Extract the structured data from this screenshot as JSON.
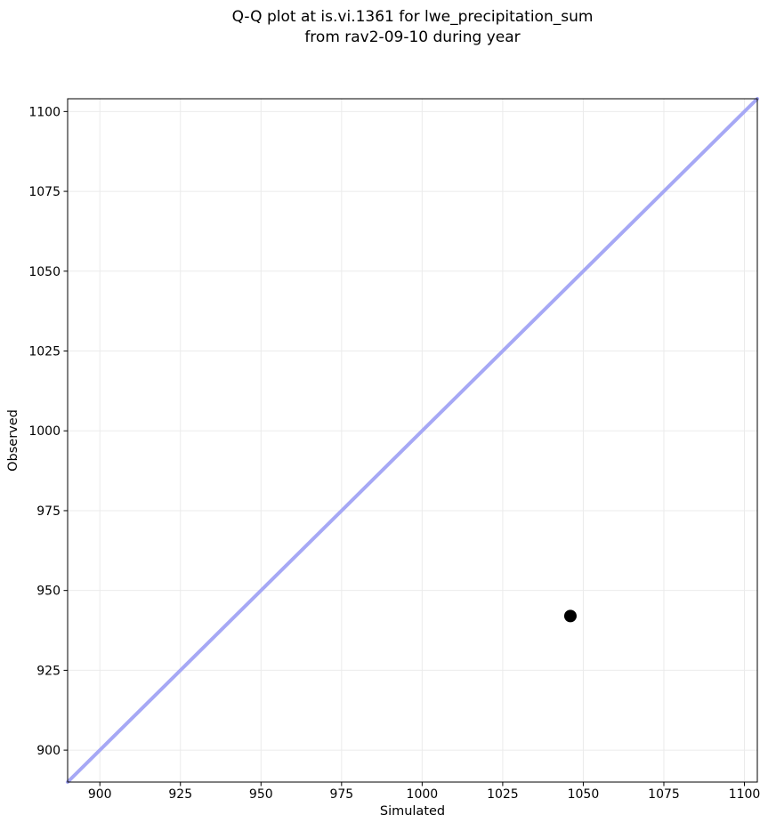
{
  "title": {
    "lines": [
      "Q-Q plot at is.vi.1361 for lwe_precipitation_sum",
      "from rav2-09-10 during year"
    ]
  },
  "chart_data": {
    "type": "scatter",
    "title": "Q-Q plot at is.vi.1361 for lwe_precipitation_sum from rav2-09-10 during year",
    "xlabel": "Simulated",
    "ylabel": "Observed",
    "xlim": [
      890,
      1104
    ],
    "ylim": [
      890,
      1104
    ],
    "xticks": [
      900,
      925,
      950,
      975,
      1000,
      1025,
      1050,
      1075,
      1100
    ],
    "yticks": [
      900,
      925,
      950,
      975,
      1000,
      1025,
      1050,
      1075,
      1100
    ],
    "grid": true,
    "legend": "none",
    "points": [
      {
        "x": 1046,
        "y": 942
      }
    ],
    "identity_line": {
      "from": 890,
      "to": 1104
    },
    "colors": {
      "point": "#000000",
      "identity_line": "#a6a8f5",
      "grid": "#ebebeb",
      "spine": "#000000",
      "background": "#ffffff"
    }
  }
}
